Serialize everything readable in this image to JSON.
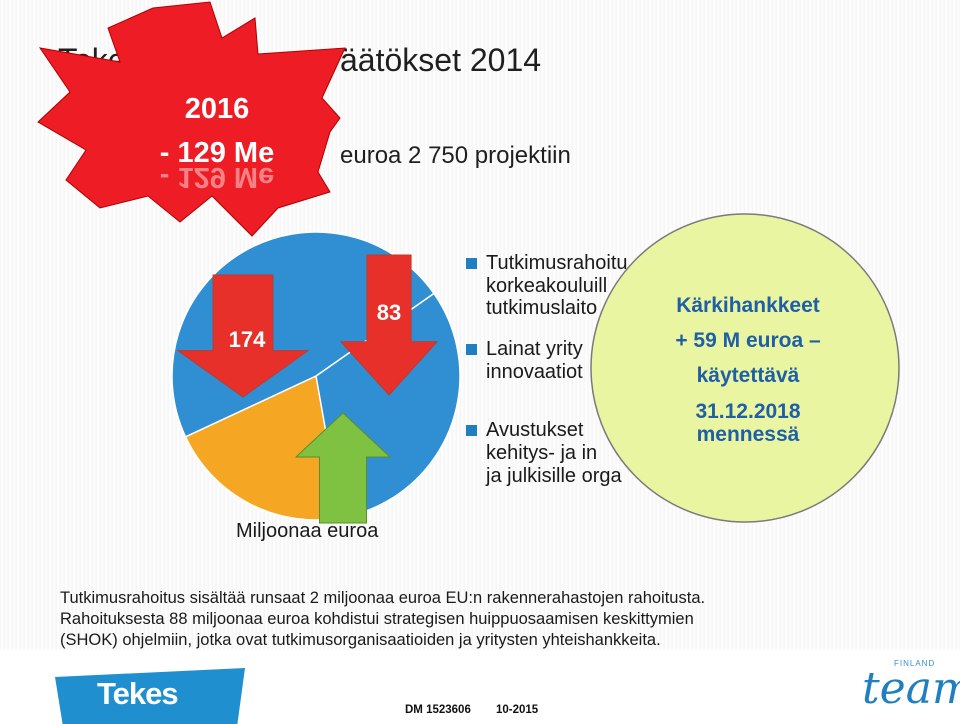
{
  "slide": {
    "title_frag_left": "Teke",
    "title_frag_right": "äätökset 2014",
    "subtitle_frag": "euroa 2 750 projektiin"
  },
  "chart_data": {
    "type": "pie",
    "title": "",
    "unit_label": "Miljoonaa euroa",
    "series": [
      {
        "legend_parts": [
          "Tutkimusrahoitu",
          "korkeakouluill",
          "tutkimuslaito"
        ],
        "color": "#2f8fd2"
      },
      {
        "legend_parts": [
          "Lainat yrity",
          "innovaatiot"
        ],
        "color": "#f5a623"
      },
      {
        "legend_parts": [
          "Avustukset",
          "kehitys- ja in",
          "ja julkisille orga"
        ],
        "color": "#8dc63f"
      }
    ],
    "annotations": [
      {
        "value": "174",
        "direction": "down",
        "color": "#e8302a"
      },
      {
        "value": "83",
        "direction": "down",
        "color": "#e8302a"
      },
      {
        "value": "",
        "direction": "up",
        "color": "#7fc241"
      }
    ],
    "legend_marker_color": "#1f7fc0"
  },
  "starburst": {
    "line1": "2016",
    "line2": "- 129 Me",
    "reflection": "- 129 Me",
    "fill": "#ee1c24",
    "text_color": "#ffffff"
  },
  "callout": {
    "lines": [
      "Kärkihankkeet",
      "+ 59 M euroa –",
      "käytettävä",
      "31.12.2018",
      "mennessä"
    ],
    "fill": "#e9f5a0",
    "text_color": "#1f5fa8"
  },
  "notes": [
    "Tutkimusrahoitus sisältää runsaat 2 miljoonaa euroa EU:n rakennerahastojen rahoitusta.",
    "Rahoituksesta 88 miljoonaa euroa kohdistui strategisen huippuosaamisen keskittymien",
    "(SHOK) ohjelmiin, jotka ovat tutkimusorganisaatioiden ja yritysten yhteishankkeita."
  ],
  "footer": {
    "logo_text": "Tekes",
    "doc_number": "DM 1523606",
    "doc_date": "10-2015",
    "team_small": "FINLAND",
    "team_text": "team",
    "logo_color": "#1f8fd0"
  }
}
